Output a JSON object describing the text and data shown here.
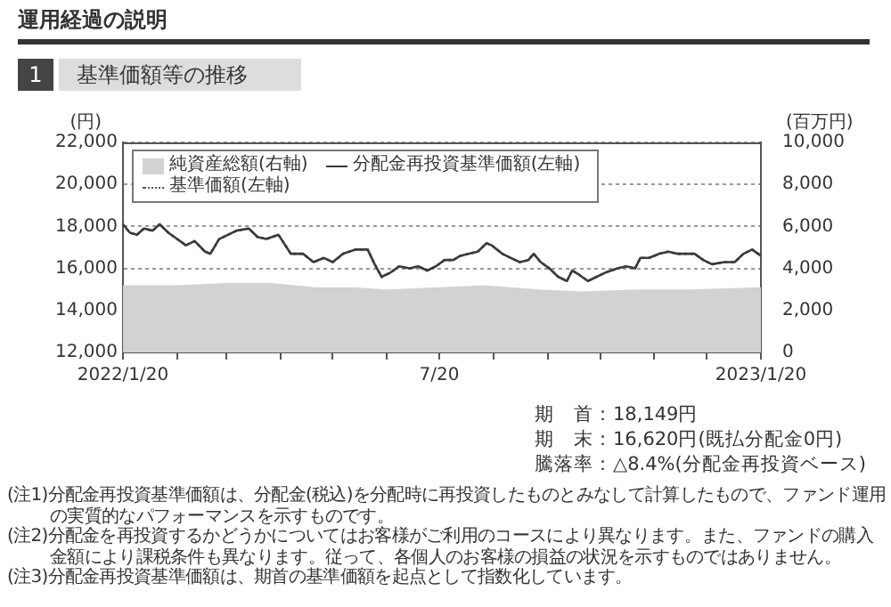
{
  "chart_data": {
    "type": "line",
    "title": "運用経過の説明",
    "subtitle": "1 基準価額等の推移",
    "ylabel": "(円)",
    "y2label": "(百万円)",
    "x": [
      "2022-01-20",
      "2022-01-24",
      "2022-01-28",
      "2022-02-01",
      "2022-02-06",
      "2022-02-10",
      "2022-02-15",
      "2022-02-20",
      "2022-02-25",
      "2022-03-02",
      "2022-03-08",
      "2022-03-11",
      "2022-03-16",
      "2022-03-21",
      "2022-03-26",
      "2022-04-02",
      "2022-04-07",
      "2022-04-12",
      "2022-04-19",
      "2022-04-26",
      "2022-05-03",
      "2022-05-09",
      "2022-05-15",
      "2022-05-20",
      "2022-05-26",
      "2022-06-02",
      "2022-06-09",
      "2022-06-13",
      "2022-06-17",
      "2022-06-22",
      "2022-06-27",
      "2022-07-03",
      "2022-07-08",
      "2022-07-13",
      "2022-07-18",
      "2022-07-23",
      "2022-07-28",
      "2022-08-01",
      "2022-08-06",
      "2022-08-11",
      "2022-08-16",
      "2022-08-19",
      "2022-08-25",
      "2022-08-30",
      "2022-09-04",
      "2022-09-09",
      "2022-09-12",
      "2022-09-16",
      "2022-09-21",
      "2022-09-26",
      "2022-10-01",
      "2022-10-04",
      "2022-10-08",
      "2022-10-13",
      "2022-10-18",
      "2022-10-23",
      "2022-10-30",
      "2022-11-04",
      "2022-11-09",
      "2022-11-12",
      "2022-11-17",
      "2022-11-23",
      "2022-11-28",
      "2022-12-03",
      "2022-12-08",
      "2022-12-13",
      "2022-12-18",
      "2022-12-23",
      "2022-12-30",
      "2023-01-05",
      "2023-01-10",
      "2023-01-15",
      "2023-01-20"
    ],
    "series": [
      {
        "name": "純資産総額(右軸)",
        "type": "area",
        "axis": "y2",
        "color": "#d2d2d2",
        "x": [
          "2022-01-20",
          "2022-02-20",
          "2022-03-20",
          "2022-04-15",
          "2022-05-10",
          "2022-06-01",
          "2022-06-20",
          "2022-07-20",
          "2022-08-15",
          "2022-09-15",
          "2022-10-10",
          "2022-11-10",
          "2022-12-10",
          "2023-01-20"
        ],
        "values": [
          3200,
          3200,
          3300,
          3300,
          3100,
          3100,
          3000,
          3100,
          3200,
          3000,
          2900,
          3000,
          3000,
          3100
        ]
      },
      {
        "name": "分配金再投資基準価額(左軸)",
        "type": "line",
        "color": "#3a3a3a",
        "line_style": "solid",
        "values": [
          18100,
          17700,
          17600,
          17900,
          17800,
          18100,
          17700,
          17400,
          17100,
          17300,
          16800,
          16700,
          17400,
          17600,
          17800,
          17900,
          17500,
          17400,
          17600,
          16700,
          16700,
          16300,
          16500,
          16300,
          16700,
          16900,
          16900,
          16200,
          15600,
          15800,
          16100,
          16000,
          16100,
          15900,
          16100,
          16400,
          16400,
          16600,
          16700,
          16800,
          17200,
          17100,
          16700,
          16500,
          16300,
          16400,
          16700,
          16300,
          16000,
          15600,
          15400,
          15900,
          15700,
          15400,
          15600,
          15800,
          16000,
          16100,
          16000,
          16500,
          16500,
          16700,
          16800,
          16700,
          16700,
          16700,
          16400,
          16200,
          16300,
          16300,
          16700,
          16900,
          16600
        ]
      },
      {
        "name": "基準価額(左軸)",
        "type": "line",
        "color": "#555555",
        "line_style": "dotted",
        "values": [
          18100,
          17700,
          17600,
          17900,
          17800,
          18100,
          17700,
          17400,
          17100,
          17300,
          16800,
          16700,
          17400,
          17600,
          17800,
          17900,
          17500,
          17400,
          17600,
          16700,
          16700,
          16300,
          16500,
          16300,
          16700,
          16900,
          16900,
          16200,
          15600,
          15800,
          16100,
          16000,
          16100,
          15900,
          16100,
          16400,
          16400,
          16600,
          16700,
          16800,
          17200,
          17100,
          16700,
          16500,
          16300,
          16400,
          16700,
          16300,
          16000,
          15600,
          15400,
          15900,
          15700,
          15400,
          15600,
          15800,
          16000,
          16100,
          16000,
          16500,
          16500,
          16700,
          16800,
          16700,
          16700,
          16700,
          16400,
          16200,
          16300,
          16300,
          16700,
          16900,
          16600
        ]
      }
    ],
    "xlim": [
      "2022-01-20",
      "2023-01-20"
    ],
    "xticks": [
      {
        "value": "2022-01-20",
        "label": "2022/1/20"
      },
      {
        "value": "2022-02-20",
        "label": null
      },
      {
        "value": "2022-03-20",
        "label": null
      },
      {
        "value": "2022-04-20",
        "label": null
      },
      {
        "value": "2022-05-20",
        "label": null
      },
      {
        "value": "2022-06-20",
        "label": null
      },
      {
        "value": "2022-07-20",
        "label": "7/20"
      },
      {
        "value": "2022-08-20",
        "label": null
      },
      {
        "value": "2022-09-20",
        "label": null
      },
      {
        "value": "2022-10-20",
        "label": null
      },
      {
        "value": "2022-11-20",
        "label": null
      },
      {
        "value": "2022-12-20",
        "label": null
      },
      {
        "value": "2023-01-20",
        "label": "2023/1/20"
      }
    ],
    "ylim": [
      12000,
      22000
    ],
    "yticks": [
      {
        "value": 12000,
        "label": "12,000"
      },
      {
        "value": 14000,
        "label": "14,000"
      },
      {
        "value": 16000,
        "label": "16,000"
      },
      {
        "value": 18000,
        "label": "18,000"
      },
      {
        "value": 20000,
        "label": "20,000"
      },
      {
        "value": 22000,
        "label": "22,000"
      }
    ],
    "y2lim": [
      0,
      10000
    ],
    "y2ticks": [
      0,
      {
        "value": 2000,
        "label": "2,000"
      },
      {
        "value": 4000,
        "label": "4,000"
      },
      {
        "value": 6000,
        "label": "6,000"
      },
      {
        "value": 8000,
        "label": "8,000"
      },
      {
        "value": 10000,
        "label": "10,000"
      }
    ],
    "grid": "y",
    "legend": "top left",
    "marker": "none",
    "annotations": [
      "期　首：18,149円",
      "期　末：16,620円(既払分配金0円)",
      "騰落率：△8.4%(分配金再投資ベース)",
      "(注1)分配金再投資基準価額は、分配金(税込)を分配時に再投資したものとみなして計算したもので、ファンド運用の実質的なパフォーマンスを示すものです。",
      "(注2)分配金を再投資するかどうかについてはお客様がご利用のコースにより異なります。また、ファンドの購入金額により課税条件も異なります。従って、各個人のお客様の損益の状況を示すものではありません。",
      "(注3)分配金再投資基準価額は、期首の基準価額を起点として指数化しています。"
    ]
  }
}
